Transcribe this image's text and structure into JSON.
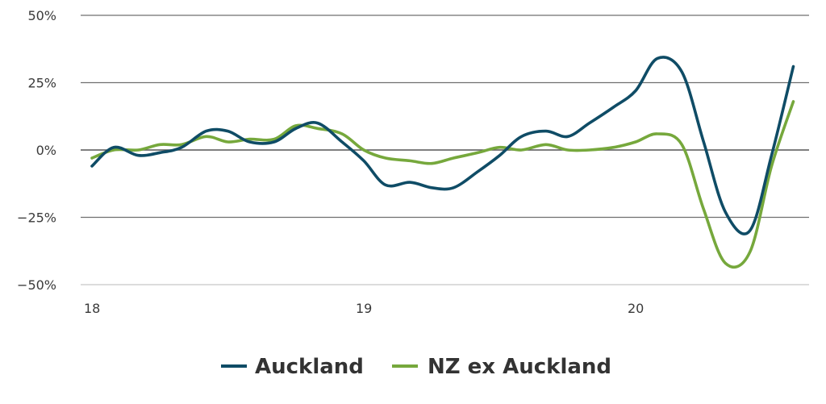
{
  "chart_data": {
    "type": "line",
    "title": "",
    "xlabel": "",
    "ylabel": "",
    "ylim": [
      -50,
      50
    ],
    "xlim": [
      18,
      20.63
    ],
    "x_ticks": [
      {
        "value": 18,
        "label": "18"
      },
      {
        "value": 19,
        "label": "19"
      },
      {
        "value": 20,
        "label": "20"
      }
    ],
    "y_ticks": [
      {
        "value": 50,
        "label": "50%"
      },
      {
        "value": 25,
        "label": "25%"
      },
      {
        "value": 0,
        "label": "0%"
      },
      {
        "value": -25,
        "label": "−25%"
      },
      {
        "value": -50,
        "label": "−50%"
      }
    ],
    "grid": true,
    "legend_position": "bottom",
    "series": [
      {
        "name": "Auckland",
        "color": "#0f4c66",
        "x": [
          18.0,
          18.08,
          18.17,
          18.25,
          18.33,
          18.42,
          18.5,
          18.58,
          18.67,
          18.75,
          18.83,
          18.92,
          19.0,
          19.08,
          19.17,
          19.25,
          19.33,
          19.42,
          19.5,
          19.58,
          19.67,
          19.75,
          19.83,
          19.92,
          20.0,
          20.08,
          20.17,
          20.25,
          20.33,
          20.42,
          20.5,
          20.58
        ],
        "y": [
          -6,
          1,
          -2,
          -1,
          1,
          7,
          7,
          3,
          3,
          8,
          10,
          3,
          -4,
          -13,
          -12,
          -14,
          -14,
          -8,
          -2,
          5,
          7,
          5,
          10,
          16,
          22,
          34,
          29,
          3,
          -23,
          -30,
          -2,
          31
        ]
      },
      {
        "name": "NZ ex Auckland",
        "color": "#76a83c",
        "x": [
          18.0,
          18.08,
          18.17,
          18.25,
          18.33,
          18.42,
          18.5,
          18.58,
          18.67,
          18.75,
          18.83,
          18.92,
          19.0,
          19.08,
          19.17,
          19.25,
          19.33,
          19.42,
          19.5,
          19.58,
          19.67,
          19.75,
          19.83,
          19.92,
          20.0,
          20.08,
          20.17,
          20.25,
          20.33,
          20.42,
          20.5,
          20.58
        ],
        "y": [
          -3,
          0,
          0,
          2,
          2,
          5,
          3,
          4,
          4,
          9,
          8,
          6,
          0,
          -3,
          -4,
          -5,
          -3,
          -1,
          1,
          0,
          2,
          0,
          0,
          1,
          3,
          6,
          2,
          -22,
          -42,
          -38,
          -6,
          18
        ]
      }
    ]
  }
}
